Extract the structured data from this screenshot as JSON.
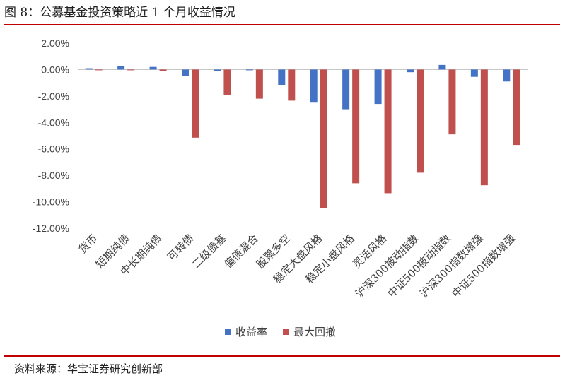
{
  "figure": {
    "title": "图 8：公募基金投资策略近 1 个月收益情况",
    "source": "资料来源：华宝证券研究创新部"
  },
  "colors": {
    "rule": "#c00000",
    "series_return": "#4472c4",
    "series_drawdown": "#c0504d",
    "grid": "#d9d9d9",
    "axis": "#bfbfbf"
  },
  "chart_data": {
    "type": "bar",
    "categories": [
      "货币",
      "短期纯债",
      "中长期纯债",
      "可转债",
      "二级债基",
      "偏债混合",
      "股票多空",
      "稳定大盘风格",
      "稳定小盘风格",
      "灵活风格",
      "沪深300被动指数",
      "中证500被动指数",
      "沪深300指数增强",
      "中证500指数增强"
    ],
    "series": [
      {
        "name": "收益率",
        "values": [
          0.1,
          0.25,
          0.2,
          -0.5,
          -0.1,
          -0.02,
          -1.2,
          -2.5,
          -3.0,
          -2.6,
          -0.2,
          0.35,
          -0.55,
          -0.9
        ]
      },
      {
        "name": "最大回撤",
        "values": [
          0.0,
          -0.05,
          -0.1,
          -5.15,
          -1.9,
          -2.2,
          -2.35,
          -10.5,
          -8.6,
          -9.35,
          -7.8,
          -4.9,
          -8.75,
          -5.7
        ]
      }
    ],
    "ylim": [
      -12,
      2
    ],
    "yticks": [
      2,
      0,
      -2,
      -4,
      -6,
      -8,
      -10,
      -12
    ],
    "ytick_labels": [
      "2.00%",
      "0.00%",
      "-2.00%",
      "-4.00%",
      "-6.00%",
      "-8.00%",
      "-10.00%",
      "-12.00%"
    ],
    "legend_position": "bottom-center",
    "grid": false
  }
}
